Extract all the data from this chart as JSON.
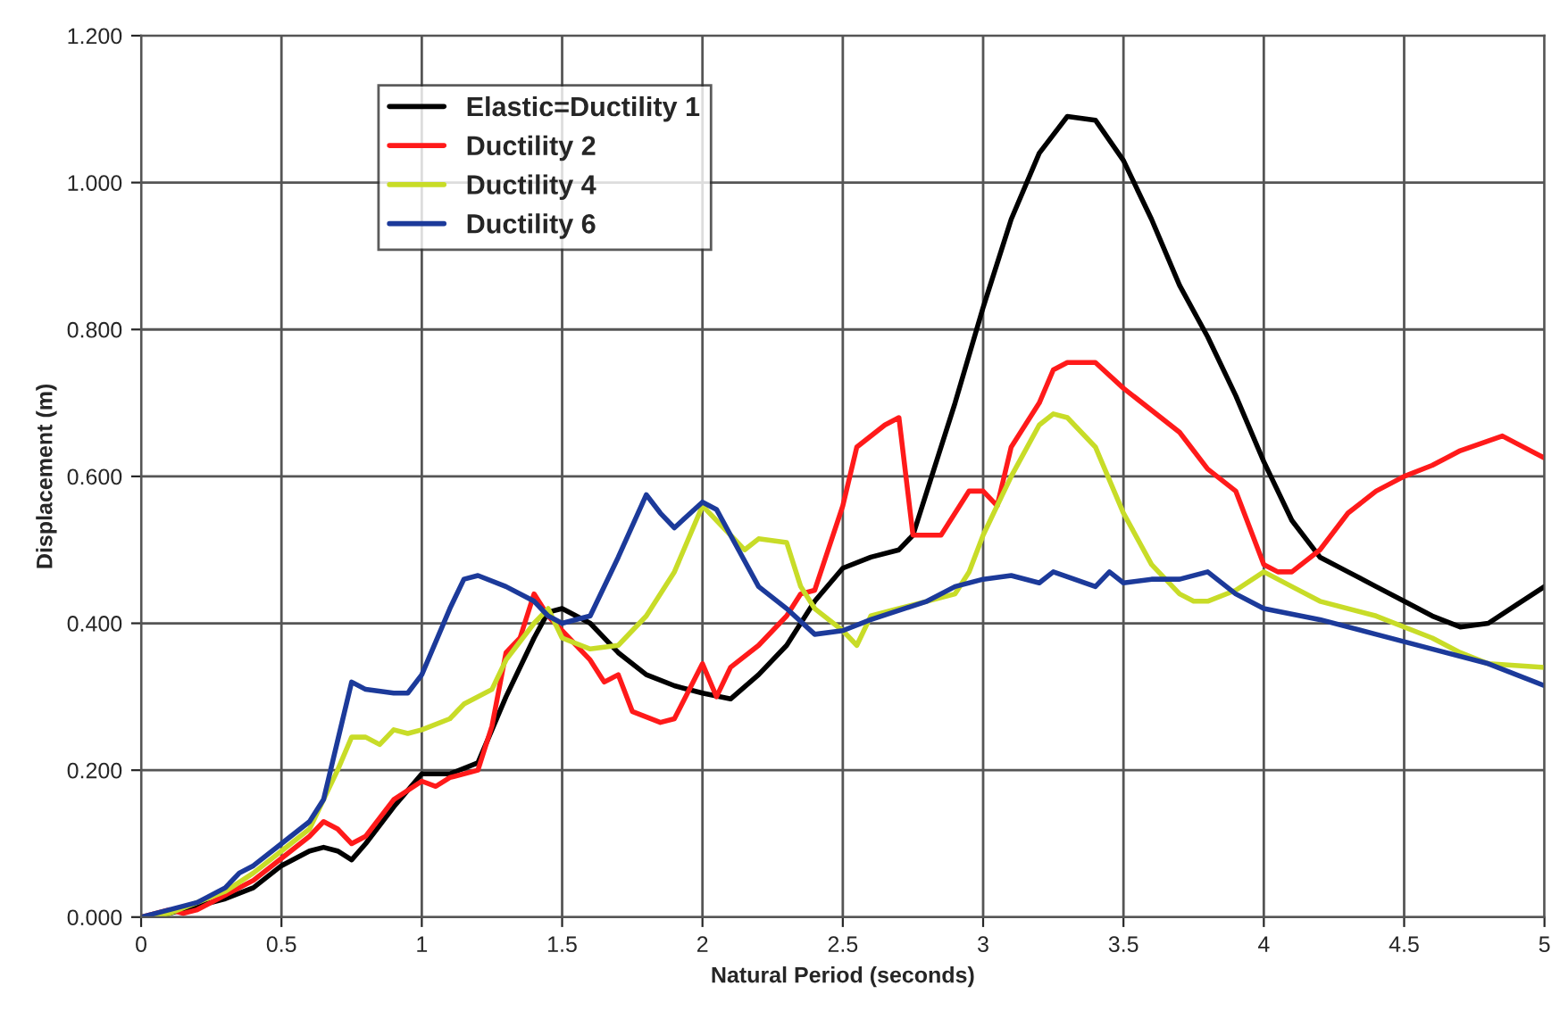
{
  "chart_data": {
    "type": "line",
    "xlabel": "Natural Period (seconds)",
    "ylabel": "Displacement (m)",
    "xlim": [
      0,
      5
    ],
    "xticks": [
      0,
      0.5,
      1,
      1.5,
      2,
      2.5,
      3,
      3.5,
      4,
      4.5,
      5
    ],
    "ylim": [
      0,
      1.2
    ],
    "yticks": [
      {
        "value": 0,
        "label": "0.000"
      },
      {
        "value": 0.2,
        "label": "0.200"
      },
      {
        "value": 0.4,
        "label": "0.400"
      },
      {
        "value": 0.6,
        "label": "0.600"
      },
      {
        "value": 0.8,
        "label": "0.800"
      },
      {
        "value": 1.0,
        "label": "1.000"
      },
      {
        "value": 1.2,
        "label": "1.200"
      }
    ],
    "grid": true,
    "legend": "top left",
    "marker": "none",
    "line_style": "solid",
    "series": [
      {
        "name": "Elastic=Ductility 1",
        "color": "#000000",
        "x": [
          0,
          0.1,
          0.2,
          0.3,
          0.4,
          0.5,
          0.6,
          0.65,
          0.7,
          0.75,
          0.8,
          0.9,
          1.0,
          1.1,
          1.2,
          1.3,
          1.4,
          1.45,
          1.5,
          1.6,
          1.7,
          1.8,
          1.9,
          2.0,
          2.1,
          2.2,
          2.3,
          2.4,
          2.5,
          2.6,
          2.7,
          2.75,
          2.8,
          2.9,
          3.0,
          3.1,
          3.2,
          3.3,
          3.4,
          3.5,
          3.6,
          3.7,
          3.8,
          3.9,
          4.0,
          4.1,
          4.2,
          4.3,
          4.4,
          4.5,
          4.6,
          4.7,
          4.8,
          4.9,
          5.0
        ],
        "values": [
          0,
          0.005,
          0.015,
          0.025,
          0.04,
          0.07,
          0.09,
          0.095,
          0.09,
          0.078,
          0.1,
          0.15,
          0.195,
          0.195,
          0.21,
          0.3,
          0.38,
          0.415,
          0.42,
          0.4,
          0.36,
          0.33,
          0.315,
          0.305,
          0.297,
          0.33,
          0.37,
          0.43,
          0.475,
          0.49,
          0.5,
          0.52,
          0.58,
          0.7,
          0.83,
          0.95,
          1.04,
          1.09,
          1.085,
          1.03,
          0.95,
          0.86,
          0.79,
          0.71,
          0.62,
          0.54,
          0.49,
          0.47,
          0.45,
          0.43,
          0.41,
          0.395,
          0.4,
          0.425,
          0.45
        ]
      },
      {
        "name": "Ductility 2",
        "color": "#ff1a1a",
        "x": [
          0,
          0.1,
          0.15,
          0.2,
          0.3,
          0.4,
          0.5,
          0.6,
          0.65,
          0.7,
          0.75,
          0.8,
          0.9,
          1.0,
          1.05,
          1.1,
          1.2,
          1.25,
          1.3,
          1.35,
          1.4,
          1.45,
          1.5,
          1.6,
          1.65,
          1.7,
          1.75,
          1.85,
          1.9,
          2.0,
          2.05,
          2.1,
          2.2,
          2.3,
          2.35,
          2.4,
          2.5,
          2.55,
          2.65,
          2.7,
          2.75,
          2.85,
          2.95,
          3.0,
          3.05,
          3.1,
          3.2,
          3.25,
          3.3,
          3.4,
          3.5,
          3.6,
          3.7,
          3.8,
          3.9,
          4.0,
          4.05,
          4.1,
          4.2,
          4.3,
          4.4,
          4.5,
          4.6,
          4.7,
          4.85,
          4.9,
          5.0
        ],
        "values": [
          0,
          0.01,
          0.005,
          0.01,
          0.03,
          0.05,
          0.08,
          0.11,
          0.13,
          0.12,
          0.1,
          0.11,
          0.16,
          0.185,
          0.178,
          0.19,
          0.2,
          0.26,
          0.36,
          0.38,
          0.44,
          0.41,
          0.39,
          0.35,
          0.32,
          0.33,
          0.28,
          0.265,
          0.27,
          0.345,
          0.3,
          0.34,
          0.37,
          0.41,
          0.44,
          0.445,
          0.56,
          0.64,
          0.67,
          0.68,
          0.52,
          0.52,
          0.58,
          0.58,
          0.56,
          0.64,
          0.7,
          0.745,
          0.755,
          0.755,
          0.72,
          0.69,
          0.66,
          0.61,
          0.58,
          0.48,
          0.47,
          0.47,
          0.5,
          0.55,
          0.58,
          0.6,
          0.615,
          0.635,
          0.655,
          0.645,
          0.625
        ]
      },
      {
        "name": "Ductility 4",
        "color": "#c8dc28",
        "x": [
          0,
          0.1,
          0.2,
          0.3,
          0.4,
          0.5,
          0.6,
          0.65,
          0.7,
          0.75,
          0.8,
          0.85,
          0.9,
          0.95,
          1.0,
          1.1,
          1.15,
          1.25,
          1.3,
          1.4,
          1.45,
          1.5,
          1.6,
          1.7,
          1.8,
          1.9,
          2.0,
          2.05,
          2.15,
          2.2,
          2.3,
          2.35,
          2.4,
          2.5,
          2.55,
          2.6,
          2.7,
          2.8,
          2.9,
          2.95,
          3.0,
          3.1,
          3.2,
          3.25,
          3.3,
          3.4,
          3.5,
          3.6,
          3.7,
          3.75,
          3.8,
          3.9,
          4.0,
          4.1,
          4.2,
          4.4,
          4.6,
          4.7,
          4.8,
          5.0
        ],
        "values": [
          0,
          0.005,
          0.02,
          0.035,
          0.06,
          0.09,
          0.12,
          0.16,
          0.2,
          0.245,
          0.245,
          0.235,
          0.255,
          0.25,
          0.255,
          0.27,
          0.29,
          0.31,
          0.35,
          0.4,
          0.42,
          0.38,
          0.365,
          0.37,
          0.41,
          0.47,
          0.56,
          0.54,
          0.5,
          0.515,
          0.51,
          0.45,
          0.42,
          0.39,
          0.37,
          0.41,
          0.42,
          0.43,
          0.44,
          0.47,
          0.52,
          0.6,
          0.67,
          0.685,
          0.68,
          0.64,
          0.55,
          0.48,
          0.44,
          0.43,
          0.43,
          0.445,
          0.47,
          0.45,
          0.43,
          0.41,
          0.38,
          0.36,
          0.345,
          0.34
        ]
      },
      {
        "name": "Ductility 6",
        "color": "#1c3a9a",
        "x": [
          0,
          0.1,
          0.2,
          0.3,
          0.35,
          0.4,
          0.5,
          0.6,
          0.65,
          0.7,
          0.75,
          0.8,
          0.9,
          0.95,
          1.0,
          1.1,
          1.15,
          1.2,
          1.3,
          1.4,
          1.45,
          1.5,
          1.6,
          1.7,
          1.8,
          1.85,
          1.9,
          2.0,
          2.05,
          2.1,
          2.2,
          2.3,
          2.4,
          2.5,
          2.6,
          2.8,
          2.9,
          3.0,
          3.1,
          3.2,
          3.25,
          3.4,
          3.45,
          3.5,
          3.6,
          3.7,
          3.8,
          3.9,
          4.0,
          4.2,
          4.4,
          4.6,
          4.8,
          5.0
        ],
        "values": [
          0,
          0.01,
          0.02,
          0.04,
          0.06,
          0.07,
          0.1,
          0.13,
          0.16,
          0.24,
          0.32,
          0.31,
          0.305,
          0.305,
          0.33,
          0.42,
          0.46,
          0.465,
          0.45,
          0.43,
          0.41,
          0.4,
          0.41,
          0.49,
          0.575,
          0.55,
          0.53,
          0.565,
          0.555,
          0.52,
          0.45,
          0.42,
          0.385,
          0.39,
          0.405,
          0.43,
          0.45,
          0.46,
          0.465,
          0.455,
          0.47,
          0.45,
          0.47,
          0.455,
          0.46,
          0.46,
          0.47,
          0.44,
          0.42,
          0.405,
          0.385,
          0.365,
          0.345,
          0.315
        ]
      }
    ]
  }
}
